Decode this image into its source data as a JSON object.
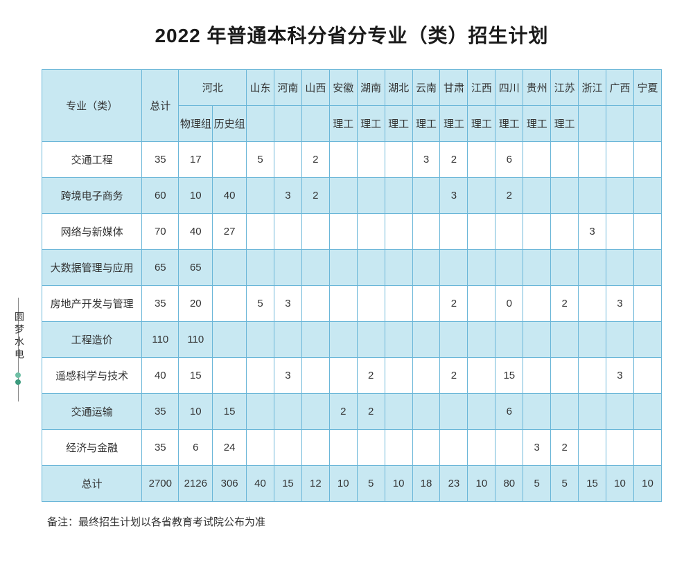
{
  "title": "2022 年普通本科分省分专业（类）招生计划",
  "side_label": "圆梦水电",
  "note": "备注：最终招生计划以各省教育考试院公布为准",
  "colors": {
    "header_bg": "#c8e8f2",
    "row_alt_bg": "#c8e8f2",
    "row_bg": "#ffffff",
    "border": "#6ab6d8",
    "text": "#333333"
  },
  "header": {
    "major": "专业（类）",
    "total": "总计",
    "hebei": "河北",
    "hebei_phys": "物理组",
    "hebei_hist": "历史组",
    "provinces": [
      "山东",
      "河南",
      "山西",
      "安徽",
      "湖南",
      "湖北",
      "云南",
      "甘肃",
      "江西",
      "四川",
      "贵州",
      "江苏",
      "浙江",
      "广西",
      "宁夏"
    ],
    "subtypes": [
      "",
      "",
      "",
      "理工",
      "理工",
      "理工",
      "理工",
      "理工",
      "理工",
      "理工",
      "理工",
      "理工",
      "",
      "",
      ""
    ]
  },
  "rows": [
    {
      "major": "交通工程",
      "total": "35",
      "phys": "17",
      "hist": "",
      "v": [
        "5",
        "",
        "2",
        "",
        "",
        "",
        "3",
        "2",
        "",
        "6",
        "",
        "",
        "",
        "",
        ""
      ]
    },
    {
      "major": "跨境电子商务",
      "total": "60",
      "phys": "10",
      "hist": "40",
      "v": [
        "",
        "3",
        "2",
        "",
        "",
        "",
        "",
        "3",
        "",
        "2",
        "",
        "",
        "",
        "",
        ""
      ]
    },
    {
      "major": "网络与新媒体",
      "total": "70",
      "phys": "40",
      "hist": "27",
      "v": [
        "",
        "",
        "",
        "",
        "",
        "",
        "",
        "",
        "",
        "",
        "",
        "",
        "3",
        "",
        ""
      ]
    },
    {
      "major": "大数据管理与应用",
      "total": "65",
      "phys": "65",
      "hist": "",
      "v": [
        "",
        "",
        "",
        "",
        "",
        "",
        "",
        "",
        "",
        "",
        "",
        "",
        "",
        "",
        ""
      ]
    },
    {
      "major": "房地产开发与管理",
      "total": "35",
      "phys": "20",
      "hist": "",
      "v": [
        "5",
        "3",
        "",
        "",
        "",
        "",
        "",
        "2",
        "",
        "0",
        "",
        "2",
        "",
        "3",
        ""
      ]
    },
    {
      "major": "工程造价",
      "total": "110",
      "phys": "110",
      "hist": "",
      "v": [
        "",
        "",
        "",
        "",
        "",
        "",
        "",
        "",
        "",
        "",
        "",
        "",
        "",
        "",
        ""
      ]
    },
    {
      "major": "遥感科学与技术",
      "total": "40",
      "phys": "15",
      "hist": "",
      "v": [
        "",
        "3",
        "",
        "",
        "2",
        "",
        "",
        "2",
        "",
        "15",
        "",
        "",
        "",
        "3",
        ""
      ]
    },
    {
      "major": "交通运输",
      "total": "35",
      "phys": "10",
      "hist": "15",
      "v": [
        "",
        "",
        "",
        "2",
        "2",
        "",
        "",
        "",
        "",
        "6",
        "",
        "",
        "",
        "",
        ""
      ]
    },
    {
      "major": "经济与金融",
      "total": "35",
      "phys": "6",
      "hist": "24",
      "v": [
        "",
        "",
        "",
        "",
        "",
        "",
        "",
        "",
        "",
        "",
        "3",
        "2",
        "",
        "",
        ""
      ]
    }
  ],
  "totals": {
    "major": "总计",
    "total": "2700",
    "phys": "2126",
    "hist": "306",
    "v": [
      "40",
      "15",
      "12",
      "10",
      "5",
      "10",
      "18",
      "23",
      "10",
      "80",
      "5",
      "5",
      "15",
      "10",
      "10"
    ]
  }
}
